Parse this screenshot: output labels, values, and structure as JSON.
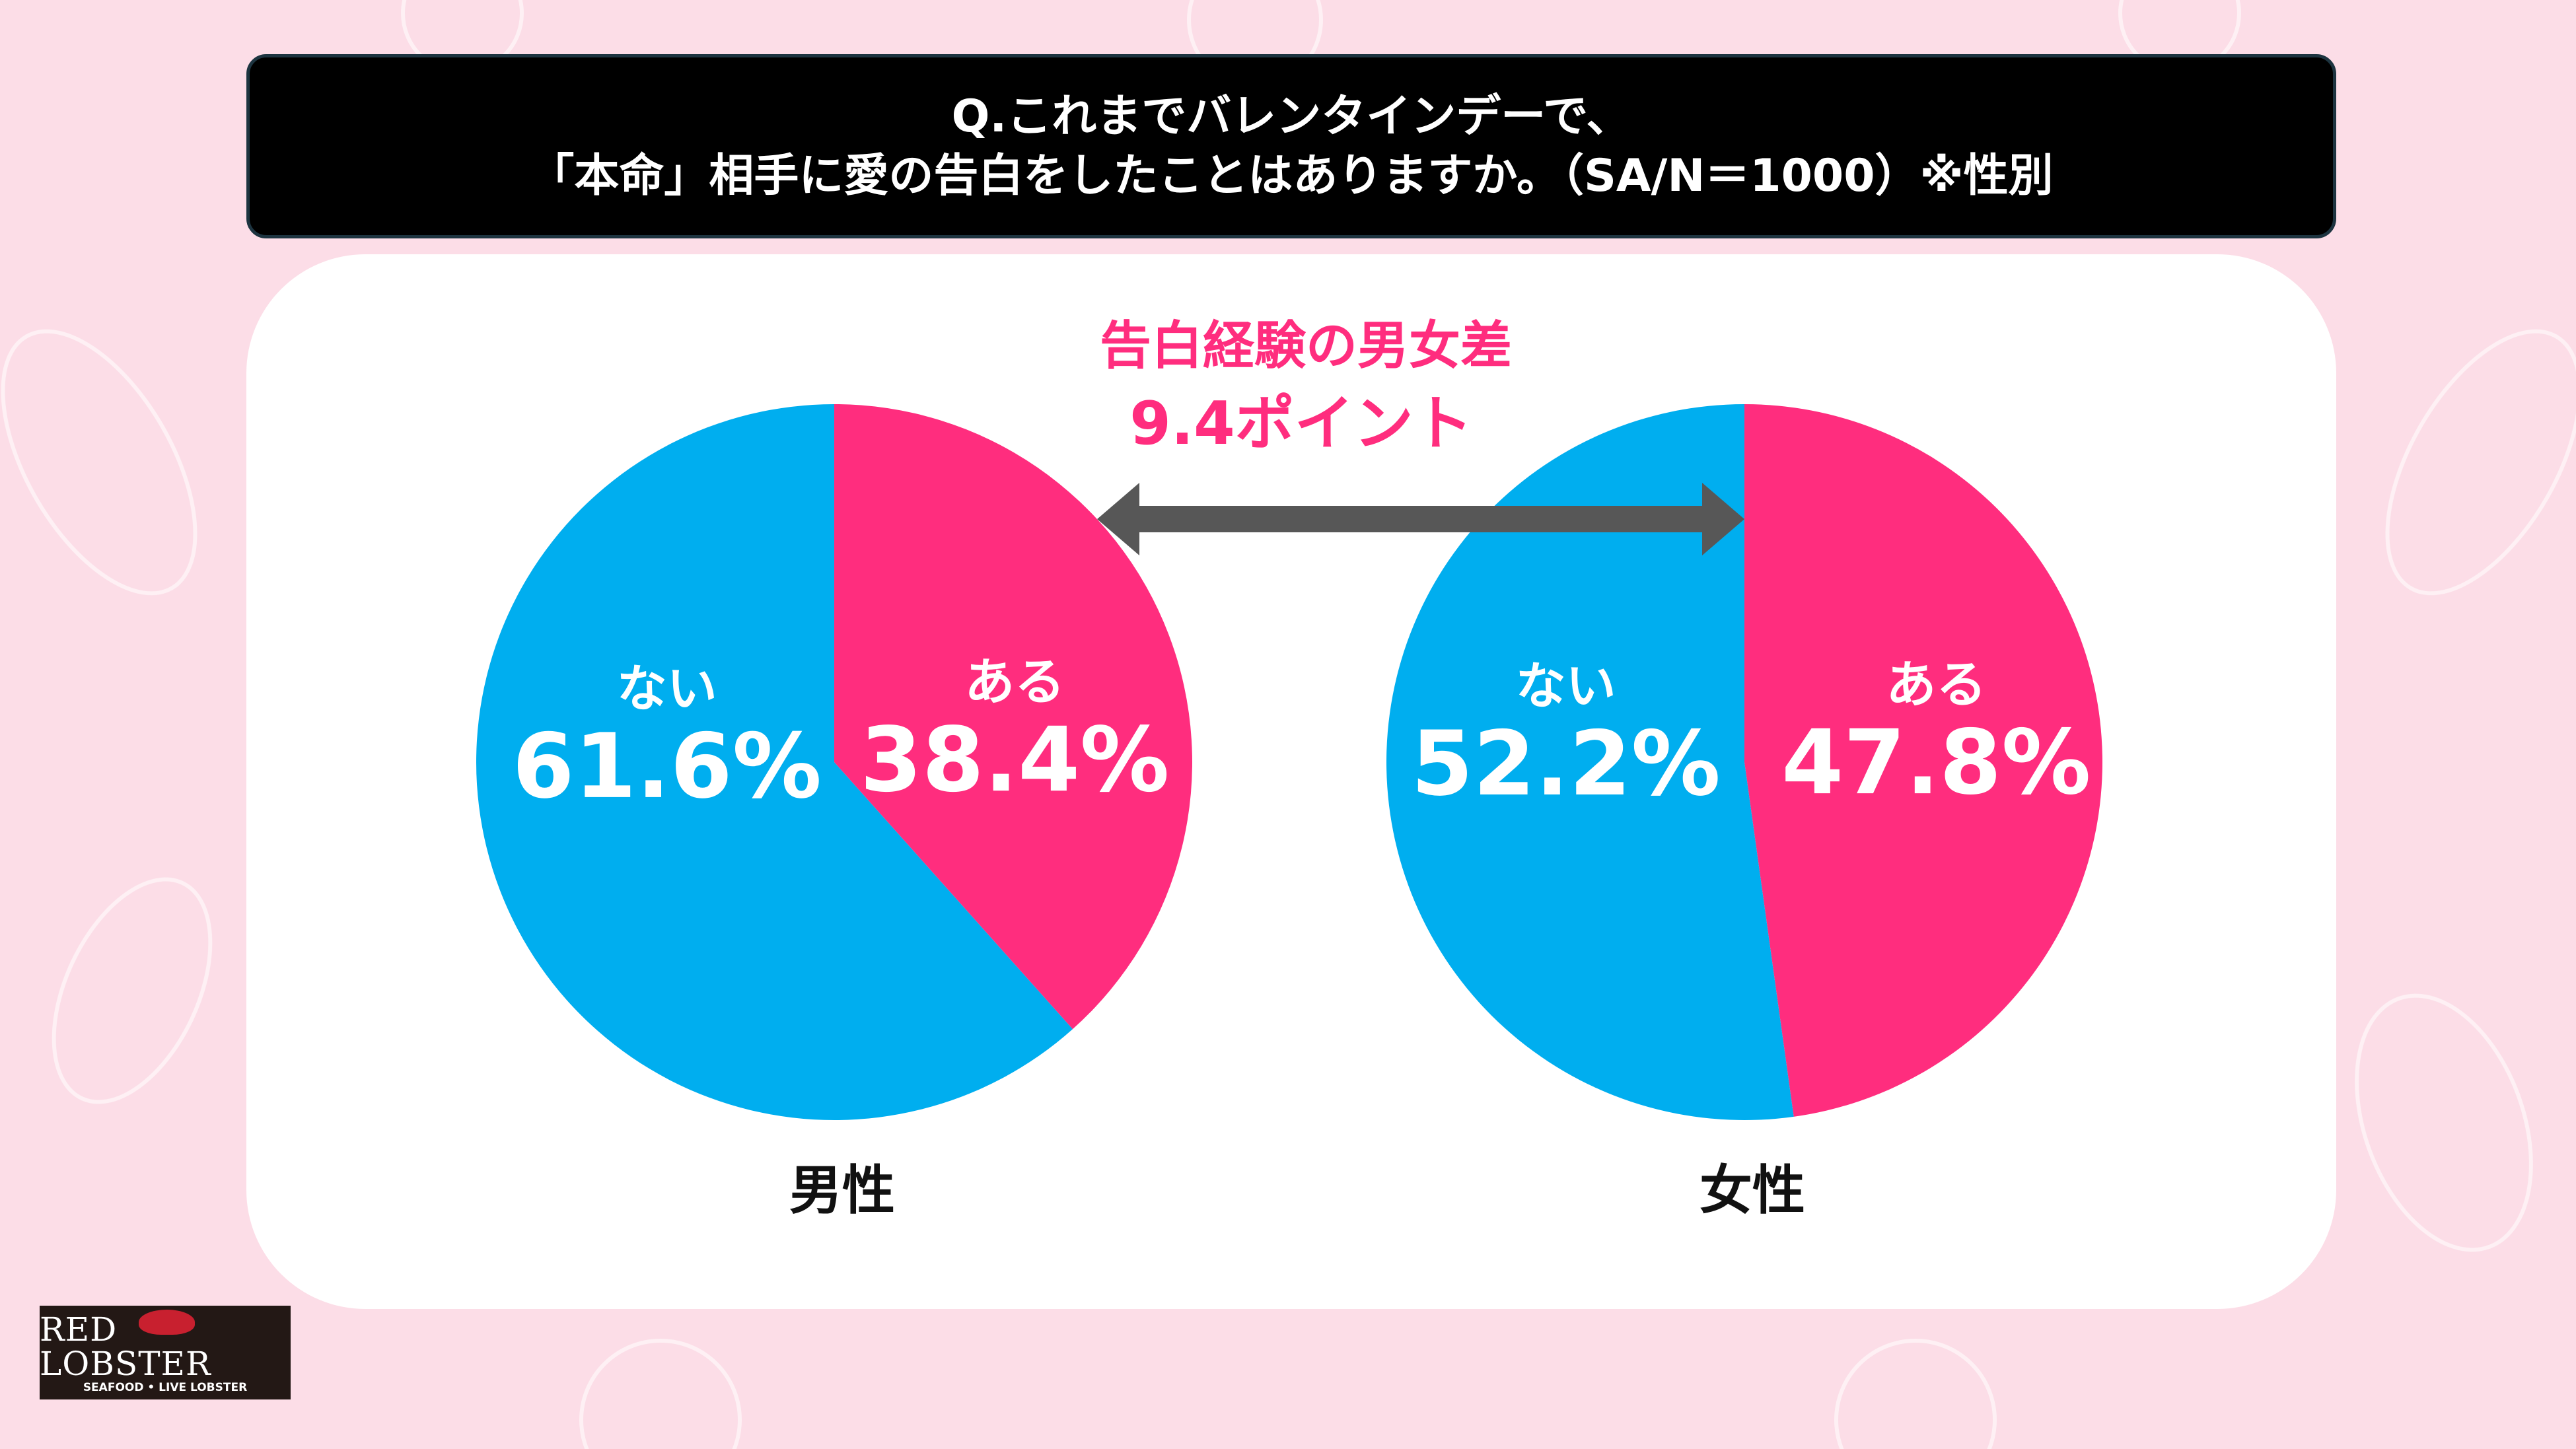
{
  "title": {
    "line1": "Q.これまでバレンタインデーで、",
    "line2": "「本命」相手に愛の告白をしたことはありますか。（SA/N＝1000）※性別"
  },
  "difference": {
    "heading": "告白経験の男女差",
    "value": "9.4ポイント"
  },
  "logo": {
    "name": "RED LOBSTER",
    "tagline": "SEAFOOD • LIVE LOBSTER"
  },
  "colors": {
    "yes": "#FF2D7E",
    "no": "#00AEEF",
    "diff_text": "#FF2D7E",
    "arrow": "#575757"
  },
  "chart_data": [
    {
      "type": "pie",
      "title": "男性",
      "slices": [
        {
          "label": "ある",
          "value": 38.4,
          "display": "38.4%"
        },
        {
          "label": "ない",
          "value": 61.6,
          "display": "61.6%"
        }
      ]
    },
    {
      "type": "pie",
      "title": "女性",
      "slices": [
        {
          "label": "ある",
          "value": 47.8,
          "display": "47.8%"
        },
        {
          "label": "ない",
          "value": 52.2,
          "display": "52.2%"
        }
      ]
    }
  ]
}
